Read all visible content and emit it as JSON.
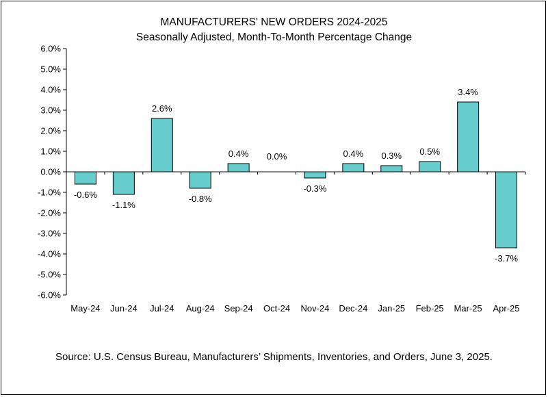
{
  "chart_data": {
    "type": "bar",
    "title": "MANUFACTURERS' NEW ORDERS 2024-2025",
    "subtitle": "Seasonally Adjusted,  Month-To-Month Percentage Change",
    "categories": [
      "May-24",
      "Jun-24",
      "Jul-24",
      "Aug-24",
      "Sep-24",
      "Oct-24",
      "Nov-24",
      "Dec-24",
      "Jan-25",
      "Feb-25",
      "Mar-25",
      "Apr-25"
    ],
    "values": [
      -0.6,
      -1.1,
      2.6,
      -0.8,
      0.4,
      0.0,
      -0.3,
      0.4,
      0.3,
      0.5,
      3.4,
      -3.7
    ],
    "data_labels": [
      "-0.6%",
      "-1.1%",
      "2.6%",
      "-0.8%",
      "0.4%",
      "0.0%",
      "-0.3%",
      "0.4%",
      "0.3%",
      "0.5%",
      "3.4%",
      "-3.7%"
    ],
    "ylim": [
      -6.0,
      6.0
    ],
    "yticks": [
      6.0,
      5.0,
      4.0,
      3.0,
      2.0,
      1.0,
      0.0,
      -1.0,
      -2.0,
      -3.0,
      -4.0,
      -5.0,
      -6.0
    ],
    "ytick_labels": [
      "6.0%",
      "5.0%",
      "4.0%",
      "3.0%",
      "2.0%",
      "1.0%",
      "0.0%",
      "-1.0%",
      "-2.0%",
      "-3.0%",
      "-4.0%",
      "-5.0%",
      "-6.0%"
    ],
    "xlabel": "",
    "ylabel": "",
    "grid": false,
    "bar_color": "#66CCCC",
    "bar_edge_color": "#000000"
  },
  "source": "Source: U.S. Census Bureau, Manufacturers’ Shipments, Inventories, and Orders, June 3, 2025."
}
